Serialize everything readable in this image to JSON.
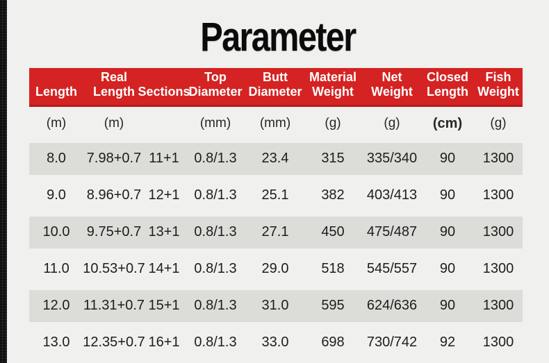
{
  "page": {
    "title": "Parameter"
  },
  "table": {
    "columns": [
      {
        "label": "Length",
        "unit": "(m)"
      },
      {
        "label": "Real Length",
        "unit": "(m)"
      },
      {
        "label": "Sections",
        "unit": ""
      },
      {
        "label": "Top Diameter",
        "unit": "(mm)"
      },
      {
        "label": "Butt Diameter",
        "unit": "(mm)"
      },
      {
        "label": "Material Weight",
        "unit": "(g)"
      },
      {
        "label": "Net Weight",
        "unit": "(g)"
      },
      {
        "label": "Closed Length",
        "unit": "(cm)"
      },
      {
        "label": "Fish Weight",
        "unit": "(g)"
      }
    ],
    "rows": [
      [
        "8.0",
        "7.98+0.7",
        "11+1",
        "0.8/1.3",
        "23.4",
        "315",
        "335/340",
        "90",
        "1300"
      ],
      [
        "9.0",
        "8.96+0.7",
        "12+1",
        "0.8/1.3",
        "25.1",
        "382",
        "403/413",
        "90",
        "1300"
      ],
      [
        "10.0",
        "9.75+0.7",
        "13+1",
        "0.8/1.3",
        "27.1",
        "450",
        "475/487",
        "90",
        "1300"
      ],
      [
        "11.0",
        "10.53+0.7",
        "14+1",
        "0.8/1.3",
        "29.0",
        "518",
        "545/557",
        "90",
        "1300"
      ],
      [
        "12.0",
        "11.31+0.7",
        "15+1",
        "0.8/1.3",
        "31.0",
        "595",
        "624/636",
        "90",
        "1300"
      ],
      [
        "13.0",
        "12.35+0.7",
        "16+1",
        "0.8/1.3",
        "33.0",
        "698",
        "730/742",
        "92",
        "1300"
      ]
    ]
  },
  "colors": {
    "header_red": "#d42322",
    "header_red_dark": "#b21d1c",
    "header_text": "#ffffff",
    "row_shade": "#dcdcd9",
    "page_bg": "#f0f0ee",
    "text_dark": "#1d1d1d"
  }
}
